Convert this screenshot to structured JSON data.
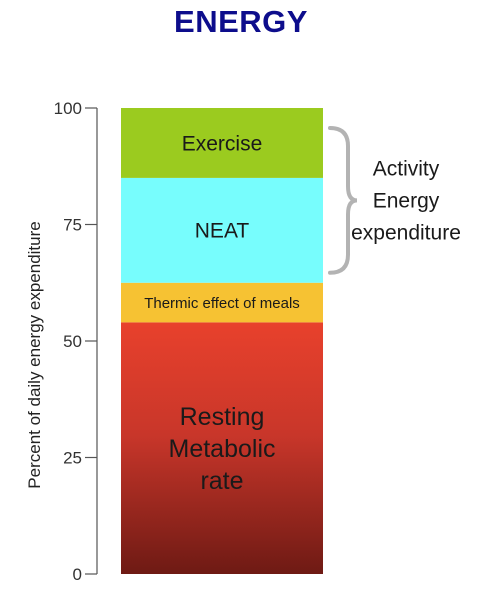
{
  "chart_data": {
    "type": "bar",
    "title": "ENERGY",
    "ylabel": "Percent of daily energy expenditure",
    "ylim": [
      0,
      100
    ],
    "yticks": [
      0,
      25,
      50,
      75,
      100
    ],
    "grid": false,
    "series": [
      {
        "label": [
          "Resting",
          "Metabolic",
          "rate"
        ],
        "start": 0,
        "end": 54,
        "color": "#e8412c",
        "color_bottom": "#6e1a14"
      },
      {
        "label": [
          "Thermic effect of meals"
        ],
        "start": 54,
        "end": 62.5,
        "color": "#f6c233"
      },
      {
        "label": [
          "NEAT"
        ],
        "start": 62.5,
        "end": 85,
        "color": "#77fdfd"
      },
      {
        "label": [
          "Exercise"
        ],
        "start": 85,
        "end": 100,
        "color": "#9bcb1f"
      }
    ],
    "annotations": [
      {
        "text": [
          "Activity",
          "Energy",
          "expenditure"
        ],
        "from": 62.5,
        "to": 100
      }
    ]
  }
}
